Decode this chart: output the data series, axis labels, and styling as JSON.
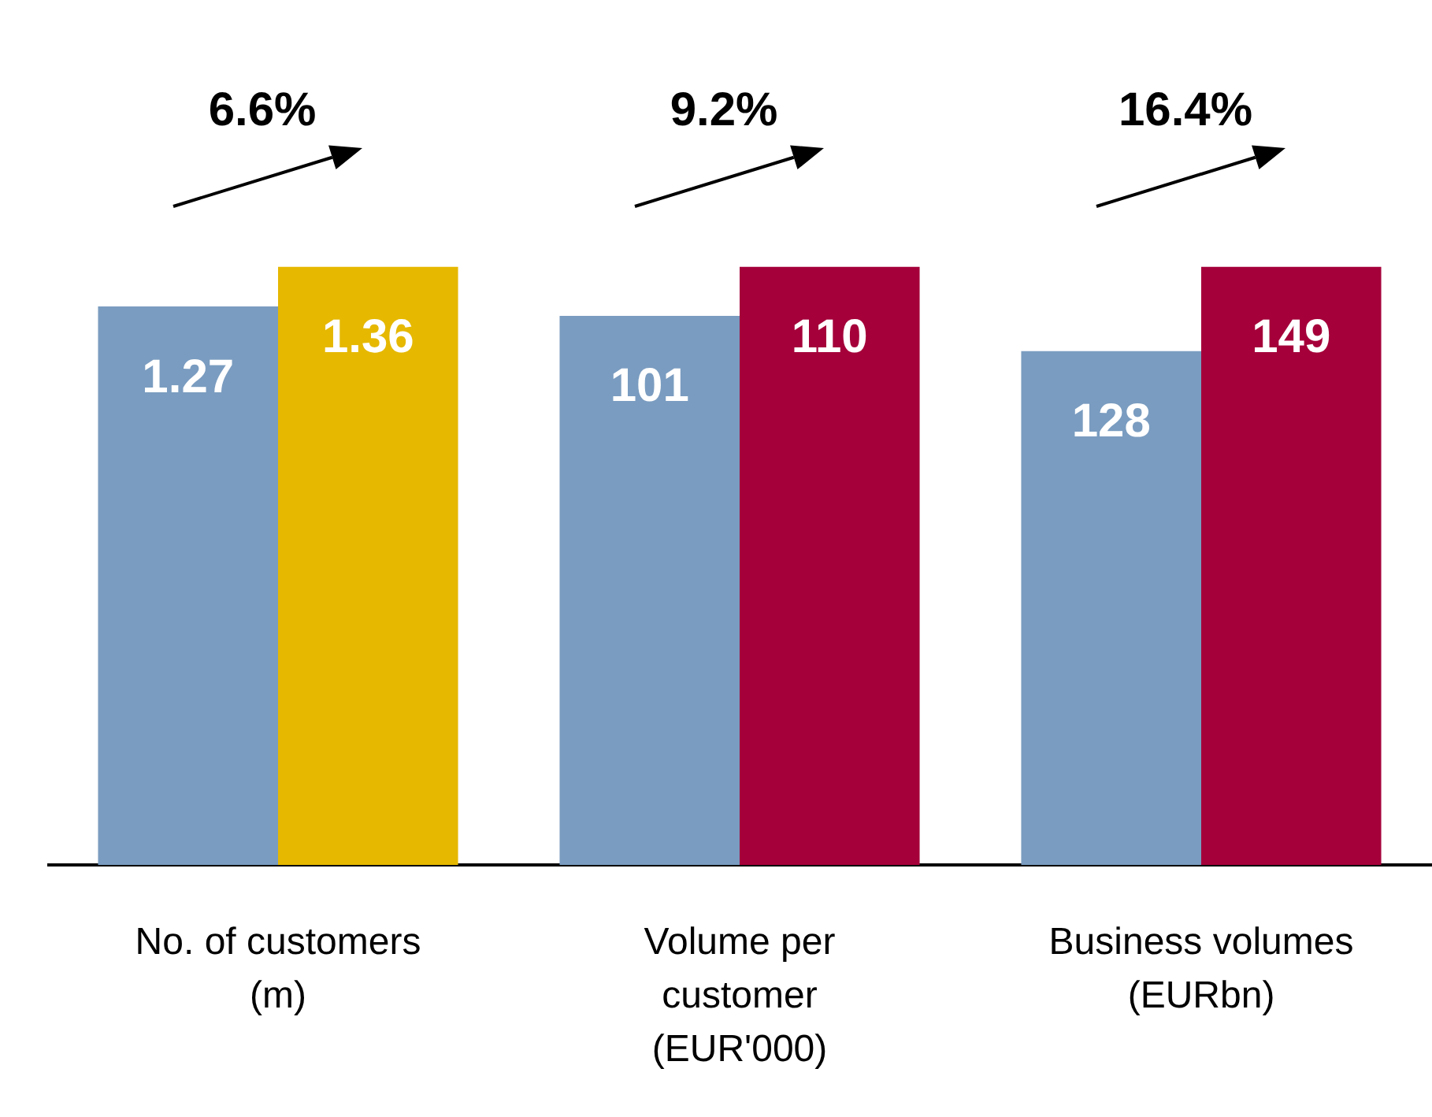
{
  "chart_data": [
    {
      "type": "bar",
      "legend": false,
      "grid": false,
      "tick_labels": false,
      "data_labels": true,
      "categories": [
        null
      ],
      "xlabel": "No. of customers (m)",
      "series": [
        {
          "color": "#7a9cc0",
          "values": [
            1.27
          ]
        },
        {
          "color": "#e6b800",
          "values": [
            1.36
          ]
        }
      ],
      "annotations": [
        "6.6%"
      ]
    },
    {
      "type": "bar",
      "legend": false,
      "grid": false,
      "tick_labels": false,
      "data_labels": true,
      "categories": [
        null
      ],
      "xlabel": "Volume per customer (EUR'000)",
      "series": [
        {
          "color": "#7a9cc0",
          "values": [
            101
          ]
        },
        {
          "color": "#a5003a",
          "values": [
            110
          ]
        }
      ],
      "annotations": [
        "9.2%"
      ]
    },
    {
      "type": "bar",
      "legend": false,
      "grid": false,
      "tick_labels": false,
      "data_labels": true,
      "categories": [
        null
      ],
      "xlabel": "Business volumes (EURbn)",
      "series": [
        {
          "color": "#7a9cc0",
          "values": [
            128
          ]
        },
        {
          "color": "#a5003a",
          "values": [
            149
          ]
        }
      ],
      "annotations": [
        "16.4%"
      ]
    }
  ]
}
